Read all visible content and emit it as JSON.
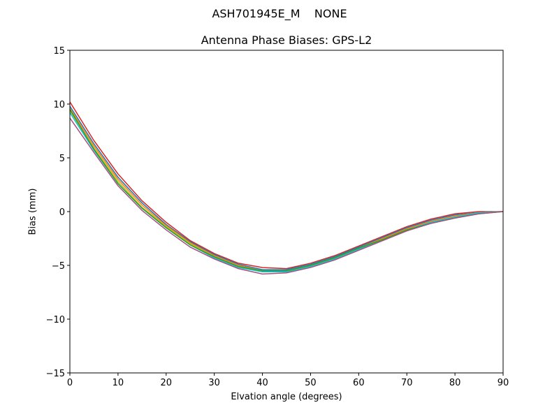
{
  "chart_data": {
    "type": "line",
    "suptitle": "ASH701945E_M    NONE",
    "title": "Antenna Phase Biases: GPS-L2",
    "xlabel": "Elvation angle (degrees)",
    "ylabel": "Bias (mm)",
    "xlim": [
      0,
      90
    ],
    "ylim": [
      -15,
      15
    ],
    "xticks": [
      0,
      10,
      20,
      30,
      40,
      50,
      60,
      70,
      80,
      90
    ],
    "yticks": [
      -15,
      -10,
      -5,
      0,
      5,
      10,
      15
    ],
    "ytick_labels": [
      "−15",
      "−10",
      "−5",
      "0",
      "5",
      "10",
      "15"
    ],
    "grid": false,
    "legend": null,
    "x": [
      0,
      5,
      10,
      15,
      20,
      25,
      30,
      35,
      40,
      45,
      50,
      55,
      60,
      65,
      70,
      75,
      80,
      85,
      90
    ],
    "series_note": "Many overlapping azimuth curves (tab10 color cycle) forming a tight band",
    "series": [
      {
        "name": "upper",
        "color": "#d62728",
        "values": [
          10.2,
          6.6,
          3.5,
          1.0,
          -1.0,
          -2.7,
          -3.9,
          -4.8,
          -5.2,
          -5.3,
          -4.8,
          -4.1,
          -3.2,
          -2.3,
          -1.4,
          -0.7,
          -0.2,
          0.0,
          0.0
        ]
      },
      {
        "name": "mid-1",
        "color": "#1f77b4",
        "values": [
          9.8,
          6.3,
          3.2,
          0.8,
          -1.2,
          -2.8,
          -4.0,
          -4.9,
          -5.4,
          -5.4,
          -4.9,
          -4.2,
          -3.3,
          -2.4,
          -1.5,
          -0.8,
          -0.3,
          -0.1,
          0.0
        ]
      },
      {
        "name": "mid-2",
        "color": "#ff7f0e",
        "values": [
          9.6,
          6.1,
          3.0,
          0.6,
          -1.3,
          -2.9,
          -4.1,
          -5.0,
          -5.5,
          -5.5,
          -5.0,
          -4.3,
          -3.4,
          -2.5,
          -1.6,
          -0.9,
          -0.4,
          -0.1,
          0.0
        ]
      },
      {
        "name": "mid-3",
        "color": "#bcbd22",
        "values": [
          9.4,
          5.9,
          2.8,
          0.4,
          -1.4,
          -3.0,
          -4.2,
          -5.1,
          -5.6,
          -5.6,
          -5.1,
          -4.4,
          -3.5,
          -2.6,
          -1.7,
          -1.0,
          -0.5,
          -0.1,
          0.0
        ]
      },
      {
        "name": "mid-4",
        "color": "#17becf",
        "values": [
          9.2,
          5.7,
          2.6,
          0.3,
          -1.5,
          -3.1,
          -4.3,
          -5.2,
          -5.6,
          -5.6,
          -5.1,
          -4.4,
          -3.5,
          -2.6,
          -1.7,
          -1.0,
          -0.5,
          -0.1,
          0.0
        ]
      },
      {
        "name": "mid-5",
        "color": "#2ca02c",
        "values": [
          9.5,
          5.8,
          2.6,
          0.3,
          -1.5,
          -3.1,
          -4.2,
          -5.1,
          -5.5,
          -5.5,
          -5.0,
          -4.3,
          -3.4,
          -2.6,
          -1.7,
          -1.1,
          -0.6,
          -0.2,
          0.0
        ]
      },
      {
        "name": "lower",
        "color": "#a4507f",
        "values": [
          8.7,
          5.5,
          2.4,
          0.1,
          -1.7,
          -3.3,
          -4.4,
          -5.3,
          -5.8,
          -5.7,
          -5.2,
          -4.5,
          -3.6,
          -2.7,
          -1.8,
          -1.1,
          -0.6,
          -0.2,
          0.0
        ]
      }
    ]
  }
}
